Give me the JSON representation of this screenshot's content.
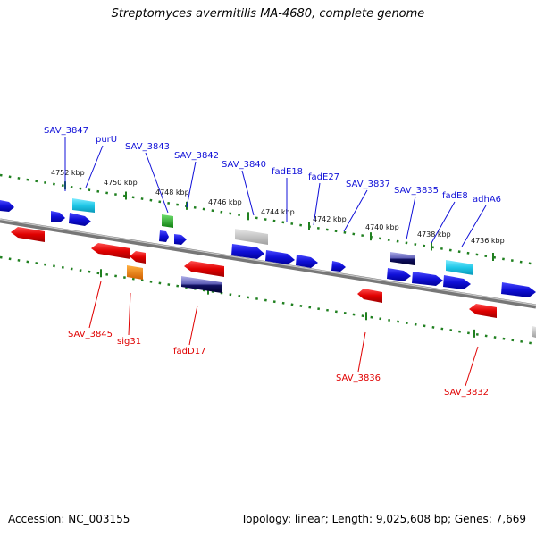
{
  "header": {
    "title": "Streptomyces avermitilis MA-4680, complete genome"
  },
  "footer": {
    "accession": "Accession: NC_003155",
    "summary": "Topology: linear; Length: 9,025,608 bp; Genes: 7,669"
  },
  "colors": {
    "blue": "#1010d8",
    "red": "#e00000",
    "cyan": "#20c8e8",
    "green": "#30b030",
    "orange": "#f08800",
    "grey": "#b0b0b0",
    "navy": "#303090",
    "tick": "#208020"
  },
  "ruler": {
    "labels": [
      "4752 kbp",
      "4750 kbp",
      "4748 kbp",
      "4746 kbp",
      "4744 kbp",
      "4742 kbp",
      "4740 kbp",
      "4738 kbp",
      "4736 kbp"
    ]
  },
  "genes_top": [
    "SAV_3847",
    "purU",
    "SAV_3843",
    "SAV_3842",
    "SAV_3840",
    "fadE18",
    "fadE27",
    "SAV_3837",
    "SAV_3835",
    "fadE8",
    "adhA6"
  ],
  "genes_bottom": [
    "SAV_3845",
    "sig31",
    "fadD17",
    "SAV_3836",
    "SAV_3832"
  ]
}
